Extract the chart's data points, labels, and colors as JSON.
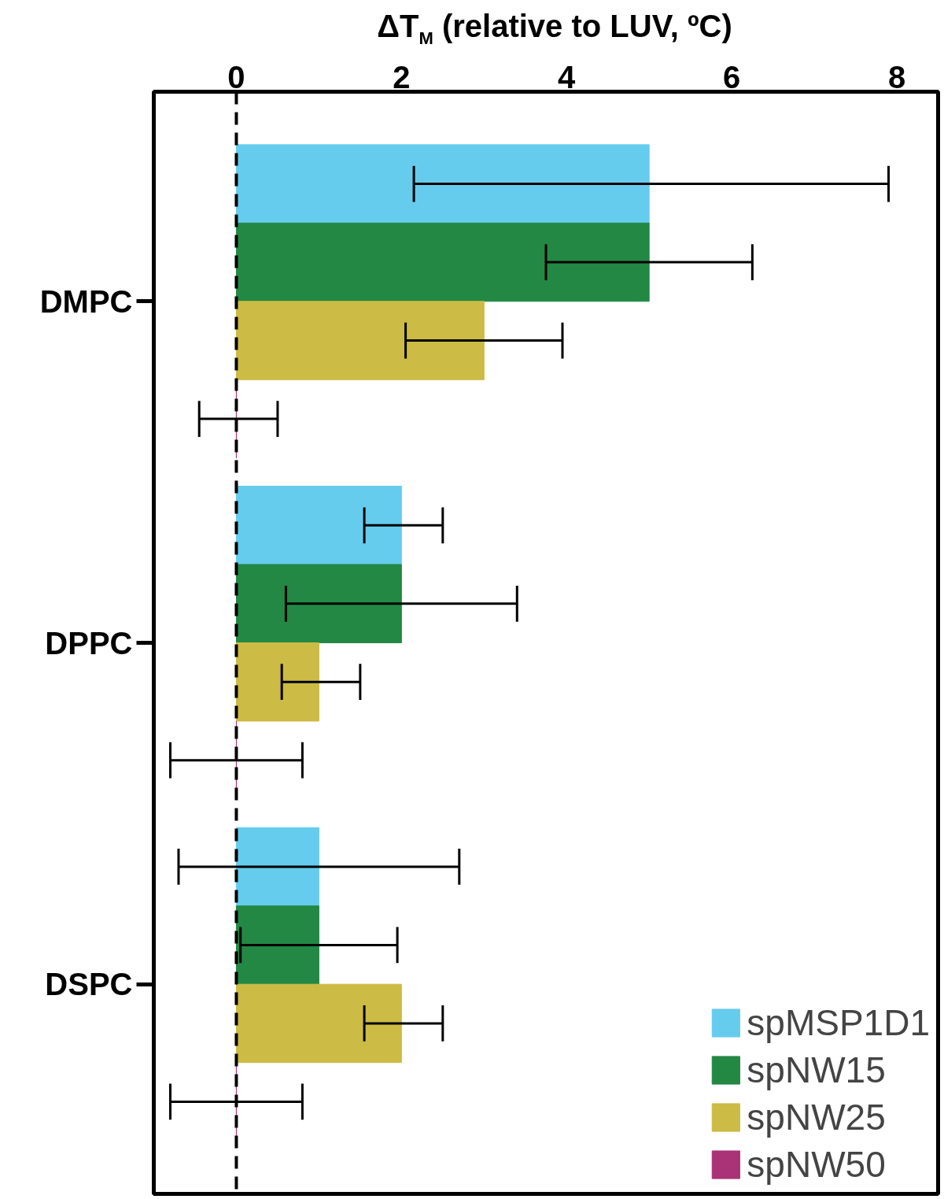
{
  "chart_data": {
    "type": "bar",
    "orientation": "horizontal",
    "xlabel": "ΔT$_{M}$ (relative to LUV, ºC)",
    "categories": [
      "DMPC",
      "DPPC",
      "DSPC"
    ],
    "series": [
      {
        "name": "spMSP1D1",
        "color": "#66ccee",
        "values": [
          5,
          2,
          1
        ],
        "errors": [
          [
            2.15,
            7.9
          ],
          [
            1.55,
            2.5
          ],
          [
            -0.7,
            2.7
          ]
        ]
      },
      {
        "name": "spNW15",
        "color": "#228844",
        "values": [
          5,
          2,
          1
        ],
        "errors": [
          [
            3.75,
            6.25
          ],
          [
            0.6,
            3.4
          ],
          [
            0.05,
            1.95
          ]
        ]
      },
      {
        "name": "spNW25",
        "color": "#ccbb44",
        "values": [
          3,
          1,
          2
        ],
        "errors": [
          [
            2.05,
            3.95
          ],
          [
            0.55,
            1.5
          ],
          [
            1.55,
            2.5
          ]
        ]
      },
      {
        "name": "spNW50",
        "color": "#aa3377",
        "values": [
          0,
          0,
          0
        ],
        "errors": [
          [
            -0.45,
            0.5
          ],
          [
            -0.8,
            0.8
          ],
          [
            -0.8,
            0.8
          ]
        ]
      }
    ],
    "xlim": [
      -1,
      8.5
    ],
    "xticks": [
      0,
      2,
      4,
      6,
      8
    ],
    "ref_lines": [
      {
        "axis": "x",
        "value": 0,
        "color": "#000000",
        "line_style": "dashed"
      }
    ],
    "legend": "bottom right",
    "grid": false
  }
}
